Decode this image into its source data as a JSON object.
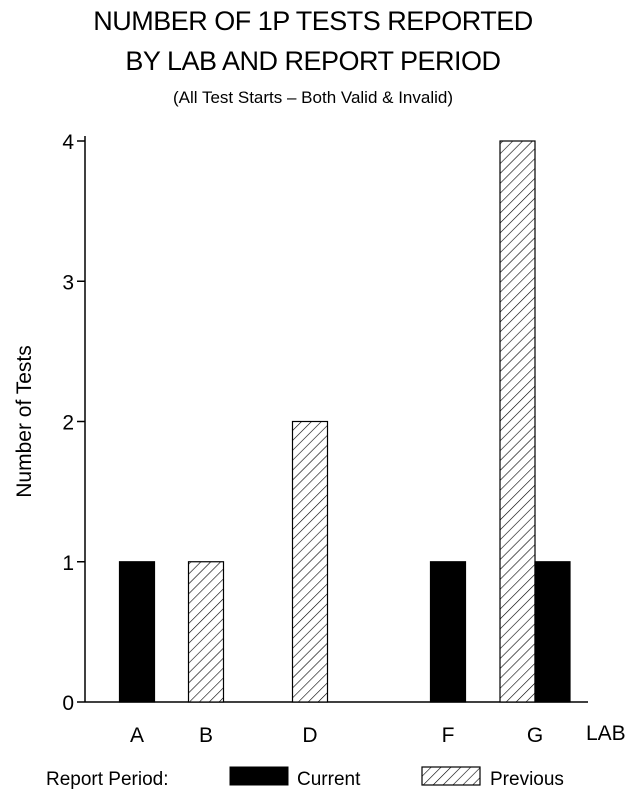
{
  "chart_data": {
    "type": "bar",
    "title": "NUMBER OF 1P TESTS REPORTED",
    "title_line2": "BY LAB AND REPORT PERIOD",
    "subtitle": "(All Test Starts – Both Valid & Invalid)",
    "xlabel": "LAB",
    "ylabel": "Number of Tests",
    "categories": [
      "A",
      "B",
      "D",
      "F",
      "G"
    ],
    "ylim": [
      0,
      4
    ],
    "yticks": [
      0,
      1,
      2,
      3,
      4
    ],
    "legend_title": "Report Period:",
    "legend_position": "bottom",
    "series": [
      {
        "name": "Current",
        "values": [
          1,
          0,
          0,
          1,
          1
        ],
        "fill": "#000000",
        "pattern": "solid"
      },
      {
        "name": "Previous",
        "values": [
          0,
          1,
          2,
          0,
          4
        ],
        "fill": "#ffffff",
        "pattern": "diagonal-hatch"
      }
    ],
    "grid": false
  }
}
